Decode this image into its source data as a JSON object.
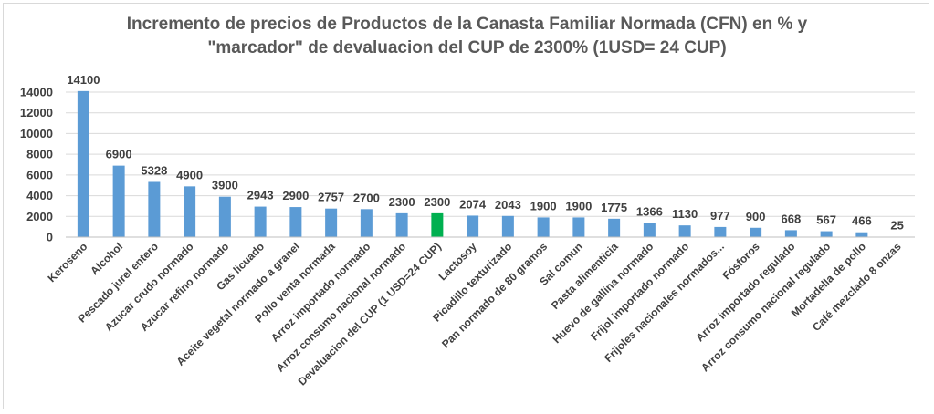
{
  "chart_data": {
    "type": "bar",
    "title_line1": "Incremento de precios de Productos de la Canasta Familiar Normada (CFN) en % y",
    "title_line2": "\"marcador\" de devaluacion del CUP de 2300% (1USD= 24 CUP)",
    "xlabel": "",
    "ylabel": "",
    "ylim": [
      0,
      14000
    ],
    "yticks": [
      0,
      2000,
      4000,
      6000,
      8000,
      10000,
      12000,
      14000
    ],
    "grid": true,
    "legend": "none",
    "colors": {
      "bar": "#5b9bd5",
      "highlight": "#00b050",
      "highlight_label": "#00b050",
      "grid": "#d9d9d9"
    },
    "highlight_index": 10,
    "categories": [
      "Keroseno",
      "Alcohol",
      "Pescado jurel entero",
      "Azucar crudo normado",
      "Azucar refino normado",
      "Gas licuado",
      "Aceite vegetal normado a granel",
      "Pollo venta normada",
      "Arroz importado normado",
      "Arroz consumo nacional normado",
      "Devaluacion del CUP (1 USD=24 CUP)",
      "Lactosoy",
      "Picadillo texturizado",
      "Pan normado de 80 gramos",
      "Sal comun",
      "Pasta alimenticia",
      "Huevo de gallina normado",
      "Frijol importado normado",
      "Frijoles nacionales normados...",
      "Fósforos",
      "Arroz importado regulado",
      "Arroz consumo nacional regulado",
      "Mortadella de pollo",
      "Café mezclado 8 onzas"
    ],
    "values": [
      14100,
      6900,
      5328,
      4900,
      3900,
      2943,
      2900,
      2757,
      2700,
      2300,
      2300,
      2074,
      2043,
      1900,
      1900,
      1775,
      1366,
      1130,
      977,
      900,
      668,
      567,
      466,
      25
    ]
  }
}
